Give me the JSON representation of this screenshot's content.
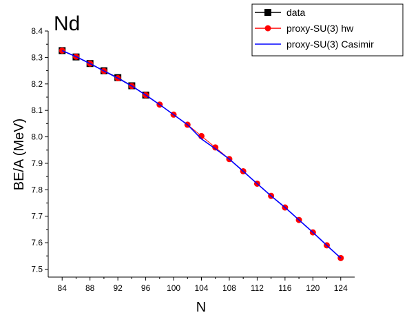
{
  "chart_data": {
    "type": "line",
    "title": "Nd",
    "xlabel": "N",
    "ylabel": "BE/A (MeV)",
    "xlim": [
      82,
      126
    ],
    "ylim": [
      7.47,
      8.4
    ],
    "xticks": [
      84,
      88,
      92,
      96,
      100,
      104,
      108,
      112,
      116,
      120,
      124
    ],
    "yticks": [
      7.5,
      7.6,
      7.7,
      7.8,
      7.9,
      8.0,
      8.1,
      8.2,
      8.3,
      8.4
    ],
    "legend_position": "top-right",
    "grid": false,
    "series": [
      {
        "name": "data",
        "color": "#000000",
        "marker": "square",
        "x": [
          84,
          86,
          88,
          90,
          92,
          94,
          96
        ],
        "y": [
          8.326,
          8.302,
          8.277,
          8.25,
          8.224,
          8.193,
          8.158
        ]
      },
      {
        "name": "proxy-SU(3) hw",
        "color": "#ff0000",
        "marker": "circle",
        "x": [
          84,
          86,
          88,
          90,
          92,
          94,
          96,
          98,
          100,
          102,
          104,
          106,
          108,
          110,
          112,
          114,
          116,
          118,
          120,
          122,
          124
        ],
        "y": [
          8.326,
          8.303,
          8.277,
          8.249,
          8.222,
          8.192,
          8.158,
          8.122,
          8.084,
          8.046,
          8.003,
          7.96,
          7.916,
          7.87,
          7.823,
          7.777,
          7.733,
          7.686,
          7.639,
          7.59,
          7.542
        ]
      },
      {
        "name": "proxy-SU(3) Casimir",
        "color": "#0000ff",
        "marker": "none",
        "x": [
          84,
          86,
          88,
          90,
          92,
          94,
          96,
          98,
          100,
          102,
          104,
          106,
          108,
          110,
          112,
          114,
          116,
          118,
          120,
          122,
          124
        ],
        "y": [
          8.326,
          8.303,
          8.277,
          8.249,
          8.222,
          8.192,
          8.158,
          8.122,
          8.084,
          8.046,
          7.992,
          7.955,
          7.916,
          7.87,
          7.823,
          7.777,
          7.733,
          7.686,
          7.639,
          7.59,
          7.542
        ]
      }
    ]
  }
}
